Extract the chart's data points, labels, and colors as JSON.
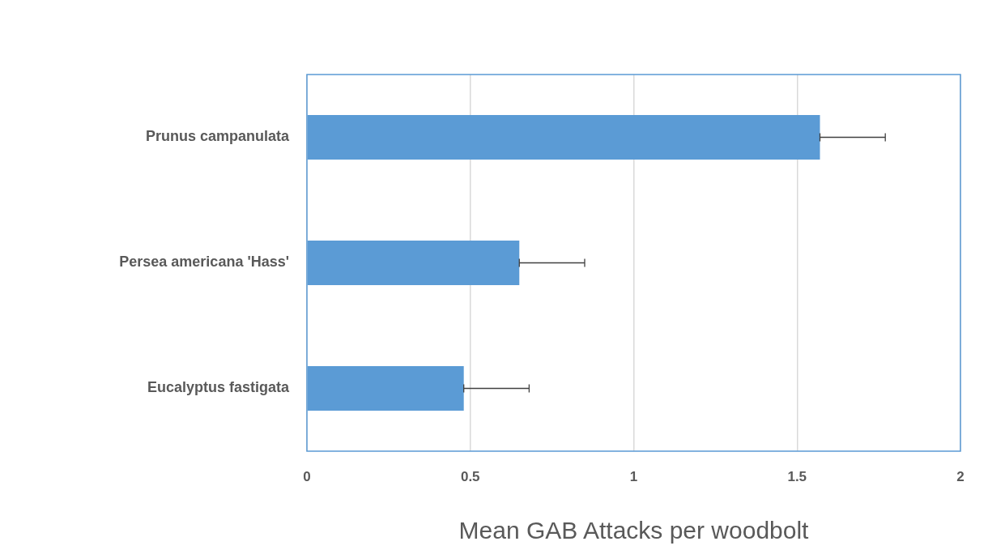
{
  "chart_data": {
    "type": "bar",
    "orientation": "horizontal",
    "xlabel": "Mean GAB Attacks per woodbolt",
    "categories": [
      "Prunus campanulata",
      "Persea americana 'Hass'",
      "Eucalyptus fastigata"
    ],
    "values": [
      1.57,
      0.65,
      0.48
    ],
    "color": "#5b9bd5",
    "errors": [
      [
        1.57,
        1.77
      ],
      [
        0.65,
        0.85
      ],
      [
        0.48,
        0.68
      ]
    ],
    "xlim": [
      0,
      2
    ],
    "xticks": [
      0,
      0.5,
      1,
      1.5,
      2
    ],
    "grid": "x",
    "legend": false
  }
}
